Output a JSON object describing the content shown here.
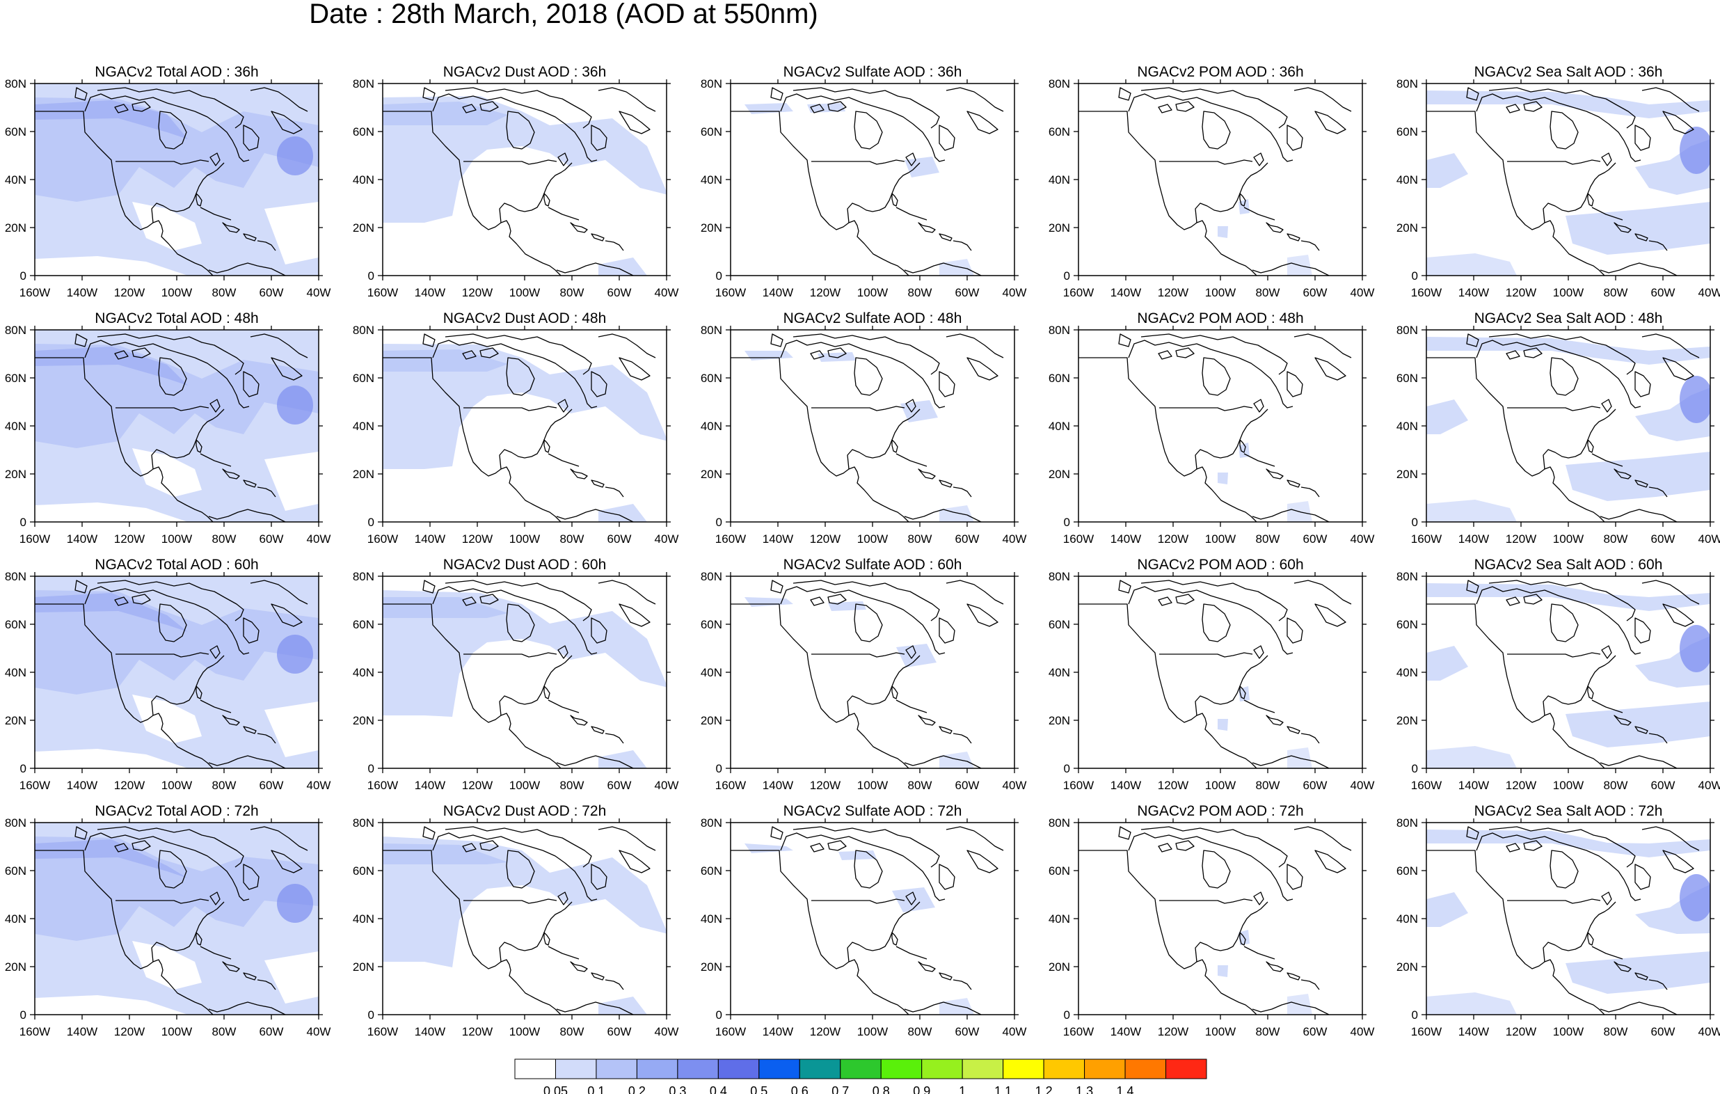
{
  "figure": {
    "title": "Date : 28th March, 2018 (AOD at 550nm)"
  },
  "axes": {
    "lon_ticks": [
      "160W",
      "140W",
      "120W",
      "100W",
      "80W",
      "60W",
      "40W"
    ],
    "lat_ticks": [
      "0",
      "20N",
      "40N",
      "60N",
      "80N"
    ]
  },
  "panels": [
    {
      "title": "NGACv2 Total AOD : 36h",
      "species": "total",
      "lead": "36h"
    },
    {
      "title": "NGACv2 Dust AOD : 36h",
      "species": "dust",
      "lead": "36h"
    },
    {
      "title": "NGACv2 Sulfate AOD : 36h",
      "species": "sulfate",
      "lead": "36h"
    },
    {
      "title": "NGACv2 POM AOD : 36h",
      "species": "pom",
      "lead": "36h"
    },
    {
      "title": "NGACv2 Sea Salt AOD : 36h",
      "species": "seasalt",
      "lead": "36h"
    },
    {
      "title": "NGACv2 Total AOD : 48h",
      "species": "total",
      "lead": "48h"
    },
    {
      "title": "NGACv2 Dust AOD : 48h",
      "species": "dust",
      "lead": "48h"
    },
    {
      "title": "NGACv2 Sulfate AOD : 48h",
      "species": "sulfate",
      "lead": "48h"
    },
    {
      "title": "NGACv2 POM AOD : 48h",
      "species": "pom",
      "lead": "48h"
    },
    {
      "title": "NGACv2 Sea Salt AOD : 48h",
      "species": "seasalt",
      "lead": "48h"
    },
    {
      "title": "NGACv2 Total AOD : 60h",
      "species": "total",
      "lead": "60h"
    },
    {
      "title": "NGACv2 Dust AOD : 60h",
      "species": "dust",
      "lead": "60h"
    },
    {
      "title": "NGACv2 Sulfate AOD : 60h",
      "species": "sulfate",
      "lead": "60h"
    },
    {
      "title": "NGACv2 POM AOD : 60h",
      "species": "pom",
      "lead": "60h"
    },
    {
      "title": "NGACv2 Sea Salt AOD : 60h",
      "species": "seasalt",
      "lead": "60h"
    },
    {
      "title": "NGACv2 Total AOD : 72h",
      "species": "total",
      "lead": "72h"
    },
    {
      "title": "NGACv2 Dust AOD : 72h",
      "species": "dust",
      "lead": "72h"
    },
    {
      "title": "NGACv2 Sulfate AOD : 72h",
      "species": "sulfate",
      "lead": "72h"
    },
    {
      "title": "NGACv2 POM AOD : 72h",
      "species": "pom",
      "lead": "72h"
    },
    {
      "title": "NGACv2 Sea Salt  AOD : 72h",
      "species": "seasalt",
      "lead": "72h"
    }
  ],
  "colorbar": {
    "labels": [
      "0.05",
      "0.1",
      "0.2",
      "0.3",
      "0.4",
      "0.5",
      "0.6",
      "0.7",
      "0.8",
      "0.9",
      "1",
      "1.1",
      "1.2",
      "1.3",
      "1.4"
    ],
    "colors": [
      "#ffffff",
      "#d2dcfa",
      "#b4c3f7",
      "#96aaf4",
      "#7d8ff0",
      "#5f6ee8",
      "#0a5ff0",
      "#0a9696",
      "#2dc82d",
      "#5af00a",
      "#96f01e",
      "#c8f046",
      "#ffff00",
      "#ffc800",
      "#ffa000",
      "#ff7800",
      "#ff2814"
    ]
  },
  "map_style": {
    "fill_light": "#d2dcfa",
    "fill_mid": "#b4c3f7",
    "fill_dark": "#7d8ff0",
    "coast": "#000000"
  }
}
